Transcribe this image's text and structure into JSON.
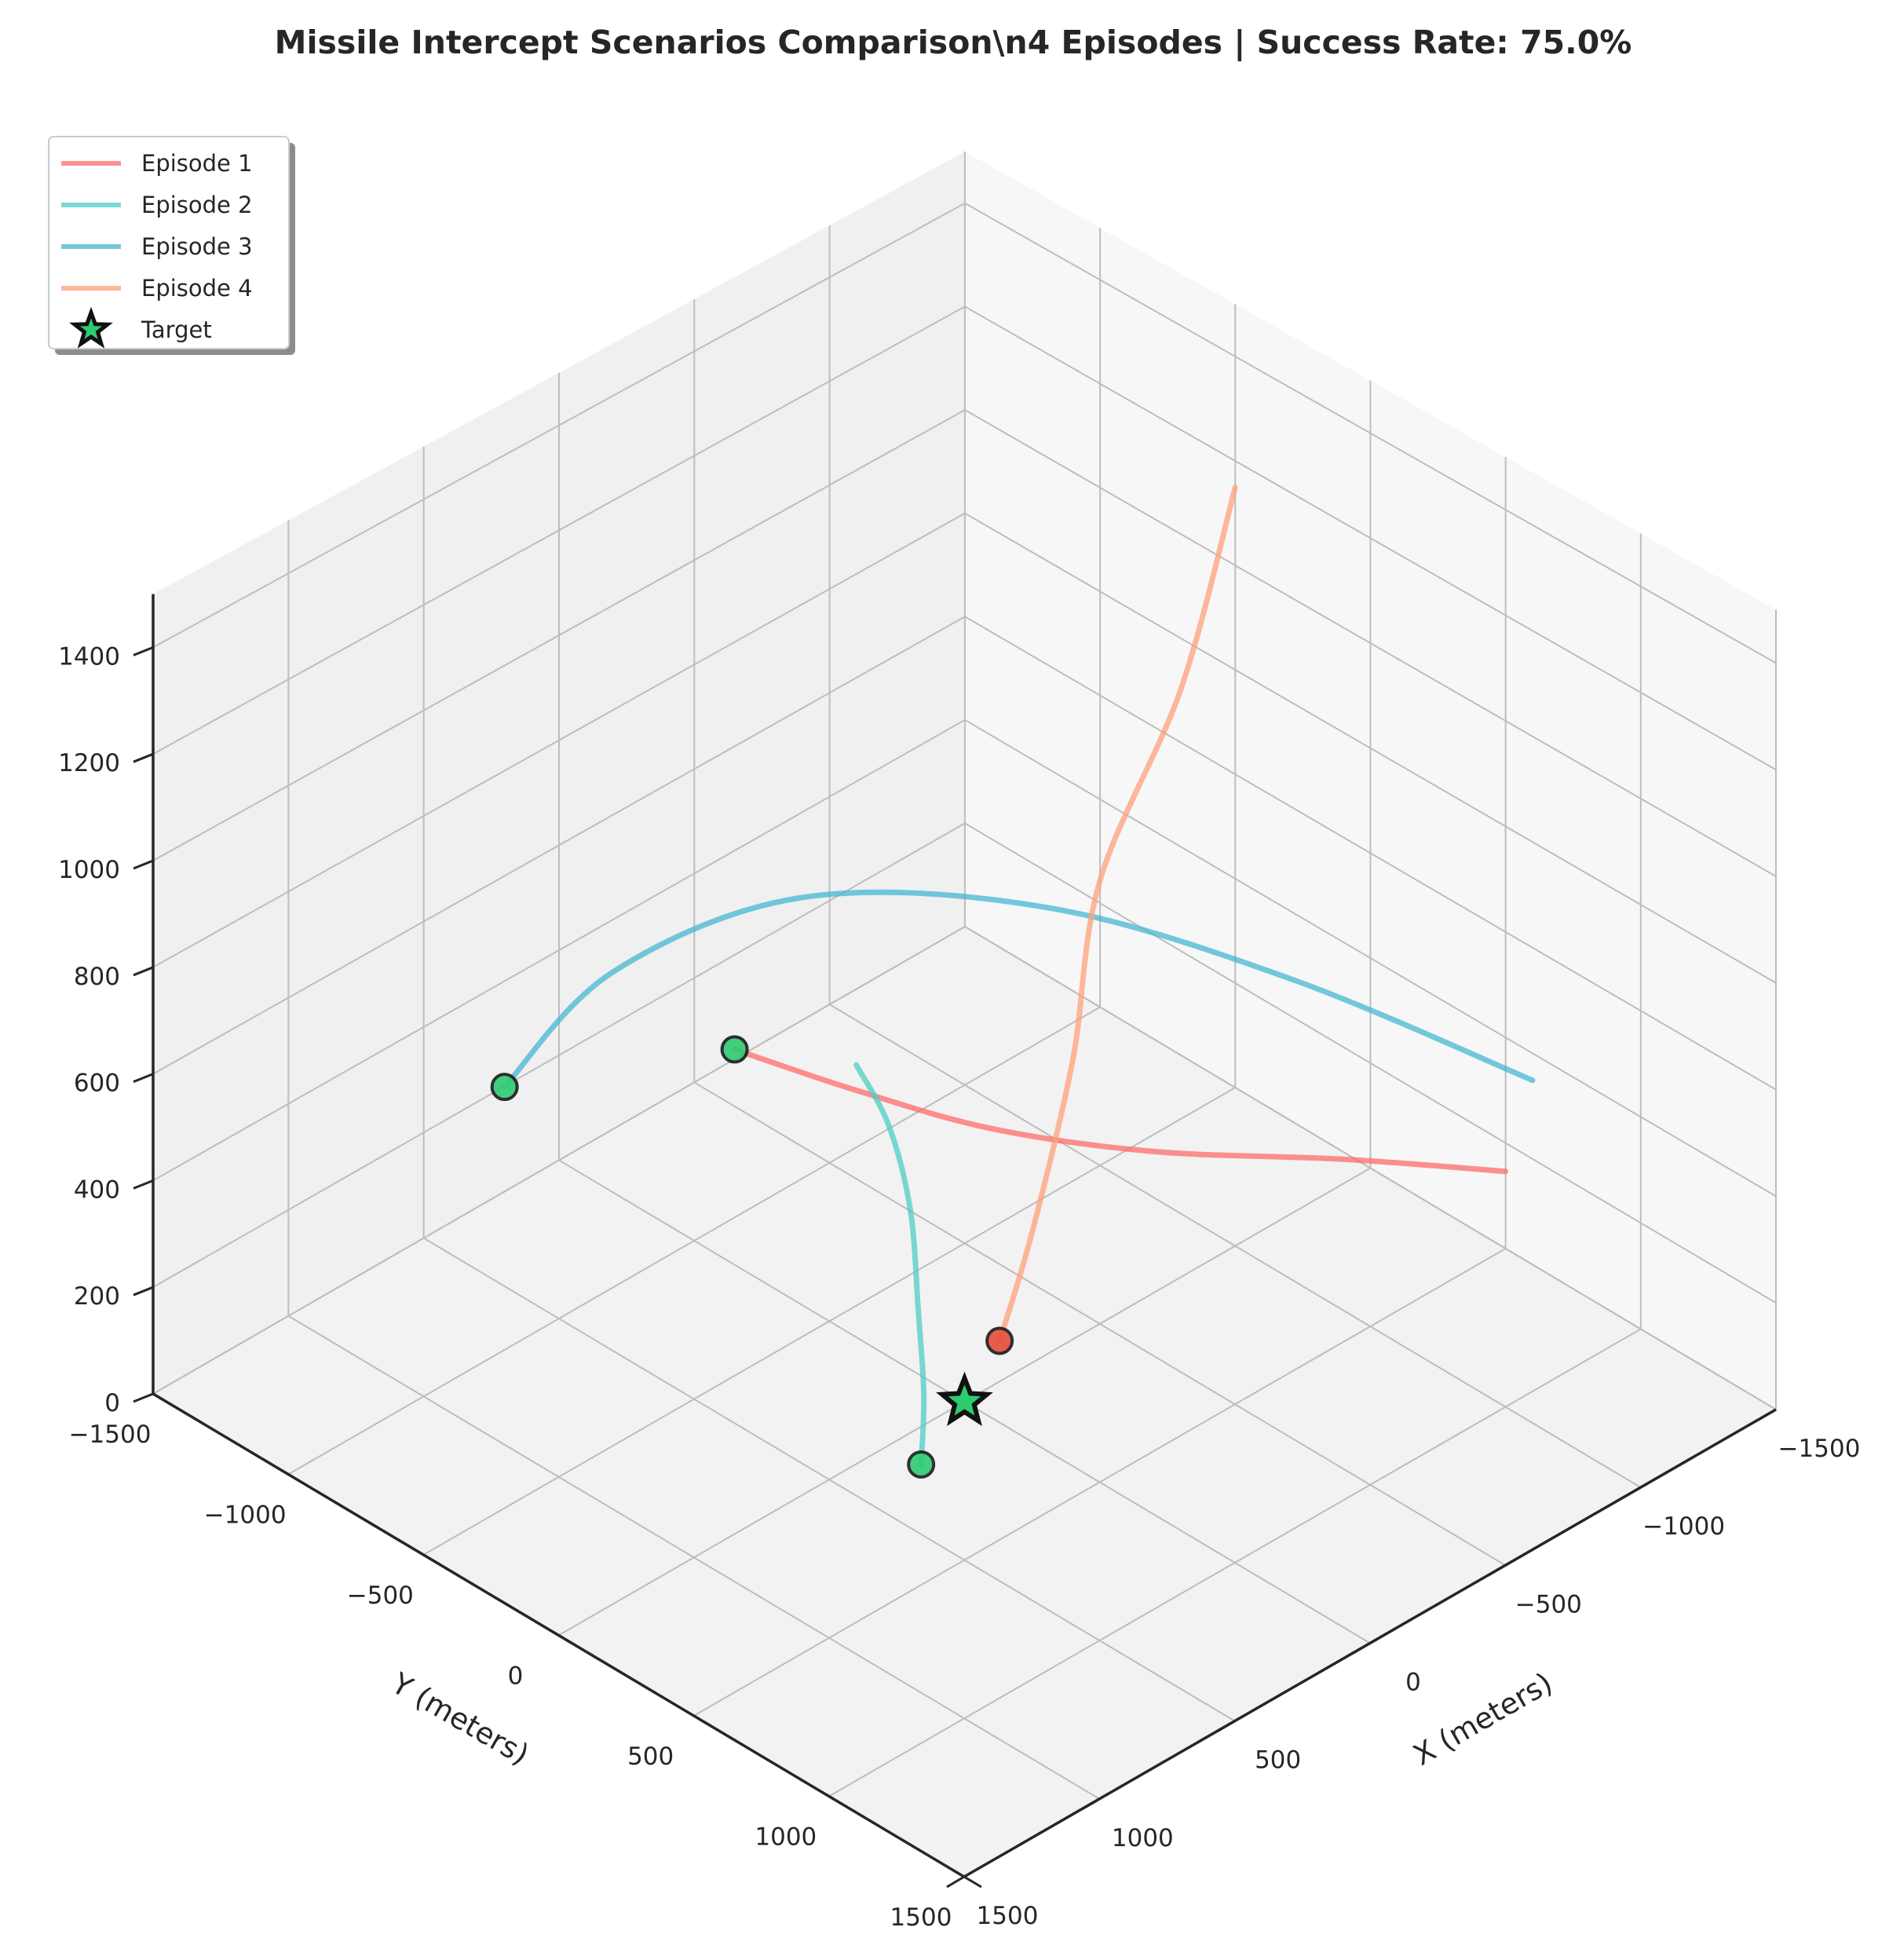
{
  "chart_data": {
    "type": "line3d",
    "title": "Missile Intercept Scenarios Comparison\\n4 Episodes | Success Rate: 75.0%",
    "xlabel": "X (meters)",
    "ylabel": "Y (meters)",
    "zlabel": "",
    "xlim": [
      -1500,
      1500
    ],
    "ylim": [
      -1500,
      1500
    ],
    "zlim": [
      0,
      1500
    ],
    "xticks": [
      "−1500",
      "−1000",
      "−500",
      "0",
      "500",
      "1000",
      "1500"
    ],
    "yticks": [
      "−1500",
      "−1000",
      "−500",
      "0",
      "500",
      "1000",
      "1500"
    ],
    "zticks": [
      "0",
      "200",
      "400",
      "600",
      "800",
      "1000",
      "1200",
      "1400"
    ],
    "grid": true,
    "legend_position": "top-left",
    "series": [
      {
        "name": "Episode 1",
        "color": "#ff6b6b",
        "outcome": "success",
        "points": [
          [
            -900,
            1100,
            500
          ],
          [
            -600,
            800,
            520
          ],
          [
            -200,
            500,
            560
          ],
          [
            100,
            200,
            600
          ],
          [
            300,
            -100,
            640
          ],
          [
            500,
            -350,
            700
          ]
        ]
      },
      {
        "name": "Episode 2",
        "color": "#4ecdc4",
        "outcome": "success",
        "points": [
          [
            600,
            200,
            860
          ],
          [
            560,
            280,
            760
          ],
          [
            550,
            350,
            620
          ],
          [
            570,
            400,
            450
          ],
          [
            600,
            450,
            320
          ],
          [
            620,
            460,
            200
          ]
        ]
      },
      {
        "name": "Episode 3",
        "color": "#45b7d1",
        "outcome": "success",
        "points": [
          [
            -900,
            1200,
            700
          ],
          [
            -600,
            600,
            800
          ],
          [
            -200,
            100,
            900
          ],
          [
            400,
            -200,
            1000
          ],
          [
            1000,
            -300,
            1000
          ],
          [
            1350,
            -350,
            870
          ]
        ]
      },
      {
        "name": "Episode 4",
        "color": "#ffa07a",
        "outcome": "miss",
        "points": [
          [
            -1100,
            -100,
            1380
          ],
          [
            -700,
            100,
            1170
          ],
          [
            -300,
            200,
            950
          ],
          [
            -100,
            300,
            700
          ],
          [
            100,
            350,
            450
          ],
          [
            250,
            380,
            300
          ]
        ]
      }
    ],
    "target": {
      "name": "Target",
      "point": [
        0,
        0,
        0
      ],
      "color": "#2ecc71"
    },
    "endpoint_colors": {
      "success": "#2ecc71",
      "miss": "#e74c3c"
    }
  }
}
